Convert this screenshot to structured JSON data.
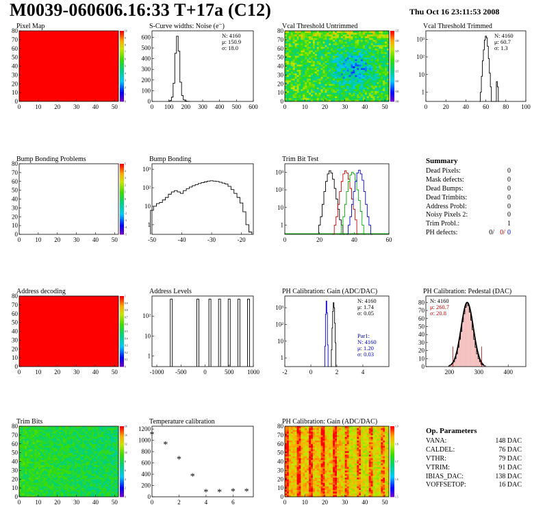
{
  "header": {
    "title": "M0039-060606.16:33 T+17a (C12)",
    "date": "Thu Oct 16 23:11:53 2008"
  },
  "summary": {
    "heading": "Summary",
    "rows": [
      {
        "label": "Dead Pixels:",
        "value": "0"
      },
      {
        "label": "Mask defects:",
        "value": "0"
      },
      {
        "label": "Dead Bumps:",
        "value": "0"
      },
      {
        "label": "Dead Trimbits:",
        "value": "0"
      },
      {
        "label": "Address Probl:",
        "value": "0"
      },
      {
        "label": "Noisy Pixels 2:",
        "value": "0"
      },
      {
        "label": "Trim Probl.:",
        "value": "1"
      }
    ],
    "ph_label": "PH defects:",
    "ph_values": [
      "0/",
      "0/",
      "0"
    ],
    "ph_colors": [
      "#000000",
      "#cc0000",
      "#0000cc"
    ]
  },
  "op_params": {
    "heading": "Op. Parameters",
    "rows": [
      {
        "label": "VANA:",
        "value": "148 DAC"
      },
      {
        "label": "CALDEL:",
        "value": "76 DAC"
      },
      {
        "label": "VTHR:",
        "value": "79 DAC"
      },
      {
        "label": "VTRIM:",
        "value": "91 DAC"
      },
      {
        "label": "IBIAS_DAC:",
        "value": "138 DAC"
      },
      {
        "label": "VOFFSETOP:",
        "value": "16 DAC"
      }
    ]
  },
  "chart_data": [
    {
      "id": "pixel-map",
      "type": "heatmap",
      "title": "Pixel Map",
      "fill": "uniform-red",
      "xticks": [
        "0",
        "10",
        "20",
        "30",
        "40",
        "50"
      ],
      "yticks": [
        "0",
        "10",
        "20",
        "30",
        "40",
        "50",
        "60",
        "70",
        "80"
      ],
      "zticks": [
        "0",
        "1",
        "2",
        "3",
        "4",
        "5",
        "6",
        "7",
        "8",
        "9",
        "10"
      ]
    },
    {
      "id": "scurve-noise",
      "type": "bar",
      "title": "S-Curve widths: Noise (e⁻)",
      "xticks": [
        "0",
        "100",
        "200",
        "300",
        "400",
        "500",
        "600"
      ],
      "yticks": [
        "0",
        "100",
        "200",
        "300",
        "400",
        "500",
        "600"
      ],
      "xlim": [
        0,
        600
      ],
      "ylim": [
        0,
        660
      ],
      "stats": [
        {
          "text": "N: 4160"
        },
        {
          "text": "μ: 150.9"
        },
        {
          "text": "σ: 18.0"
        }
      ],
      "series": [
        {
          "color": "#000000",
          "x": [
            100,
            110,
            120,
            130,
            140,
            150,
            160,
            170,
            180,
            190,
            200,
            210,
            220
          ],
          "values": [
            0,
            8,
            40,
            170,
            450,
            610,
            470,
            180,
            55,
            15,
            4,
            1,
            0
          ]
        }
      ]
    },
    {
      "id": "vcal-untrimmed",
      "type": "heatmap",
      "title": "Vcal Threshold Untrimmed",
      "fill": "mixed-blue-green",
      "xticks": [
        "0",
        "10",
        "20",
        "30",
        "40",
        "50"
      ],
      "yticks": [
        "0",
        "10",
        "20",
        "30",
        "40",
        "50",
        "60",
        "70",
        "80"
      ],
      "zticks": [
        "100",
        "105",
        "110",
        "115",
        "120",
        "125",
        "130",
        "135"
      ]
    },
    {
      "id": "vcal-trimmed",
      "type": "bar",
      "title": "Vcal Threshold Trimmed",
      "log": true,
      "xticks": [
        "0",
        "20",
        "40",
        "60",
        "80",
        "100"
      ],
      "yticks": [
        "1",
        "10",
        "10²",
        "10³"
      ],
      "xlim": [
        0,
        100
      ],
      "ylim": [
        0.3,
        3000
      ],
      "stats": [
        {
          "text": "N: 4160"
        },
        {
          "text": "μ: 60.7"
        },
        {
          "text": "σ:  1.3"
        }
      ],
      "series": [
        {
          "color": "#000000",
          "x": [
            54,
            55,
            56,
            57,
            58,
            59,
            60,
            61,
            62,
            63,
            64,
            65,
            66,
            67,
            68,
            69,
            70,
            71,
            72,
            73
          ],
          "values": [
            0,
            1,
            8,
            60,
            250,
            900,
            1500,
            1200,
            400,
            80,
            12,
            2,
            0,
            0,
            0,
            0,
            0,
            4,
            2,
            0
          ]
        }
      ]
    },
    {
      "id": "bump-problems",
      "type": "heatmap",
      "title": "Bump Bonding Problems",
      "fill": "white",
      "xticks": [
        "0",
        "10",
        "20",
        "30",
        "40",
        "50"
      ],
      "yticks": [
        "0",
        "10",
        "20",
        "30",
        "40",
        "50",
        "60",
        "70",
        "80"
      ],
      "zticks": [
        "-5",
        "-4",
        "-3",
        "-2",
        "-1",
        "0",
        "1",
        "2",
        "3",
        "4",
        "5"
      ]
    },
    {
      "id": "bump-bonding",
      "type": "bar",
      "title": "Bump Bonding",
      "log": true,
      "xticks": [
        "-50",
        "-40",
        "-30",
        "-20"
      ],
      "yticks": [
        "1",
        "10",
        "10²",
        "10³"
      ],
      "xlim": [
        -50,
        -16
      ],
      "ylim": [
        0.3,
        2000
      ],
      "series": [
        {
          "color": "#000000",
          "x": [
            -50,
            -49,
            -48,
            -47,
            -46,
            -45,
            -44,
            -43,
            -42,
            -41,
            -40,
            -39,
            -38,
            -37,
            -36,
            -35,
            -34,
            -33,
            -32,
            -31,
            -30,
            -29,
            -28,
            -27,
            -26,
            -25,
            -24,
            -23,
            -22,
            -21,
            -20,
            -19,
            -18,
            -17
          ],
          "values": [
            6,
            10,
            14,
            16,
            22,
            30,
            45,
            60,
            70,
            60,
            50,
            70,
            90,
            110,
            130,
            150,
            170,
            190,
            210,
            230,
            240,
            230,
            220,
            200,
            180,
            160,
            120,
            80,
            50,
            30,
            15,
            5,
            1,
            0.4
          ]
        }
      ]
    },
    {
      "id": "trim-bit-test",
      "type": "bar",
      "title": "Trim Bit Test",
      "log": true,
      "xticks": [
        "0",
        "20",
        "40",
        "60"
      ],
      "yticks": [
        "1",
        "10",
        "10²",
        "10³"
      ],
      "xlim": [
        0,
        60
      ],
      "ylim": [
        0.3,
        3000
      ],
      "series": [
        {
          "color": "#000000",
          "x": [
            20,
            21,
            22,
            23,
            24,
            25,
            26,
            27,
            28,
            29,
            30,
            31,
            32,
            33,
            34
          ],
          "values": [
            1,
            3,
            15,
            80,
            300,
            800,
            1200,
            900,
            400,
            120,
            30,
            8,
            2,
            1,
            0.3
          ]
        },
        {
          "color": "#cc0000",
          "x": [
            28,
            29,
            30,
            31,
            32,
            33,
            34,
            35,
            36,
            37,
            38,
            39,
            40,
            41,
            42
          ],
          "values": [
            0.3,
            1,
            3,
            15,
            80,
            300,
            800,
            1200,
            900,
            400,
            120,
            30,
            8,
            2,
            0.3
          ]
        },
        {
          "color": "#00aa00",
          "x": [
            32,
            33,
            34,
            35,
            36,
            37,
            38,
            39,
            40,
            41,
            42,
            43,
            44,
            45,
            46
          ],
          "values": [
            0.3,
            1,
            3,
            15,
            80,
            300,
            700,
            1000,
            800,
            350,
            100,
            25,
            6,
            1,
            0.3
          ]
        },
        {
          "color": "#0000cc",
          "x": [
            36,
            37,
            38,
            39,
            40,
            41,
            42,
            43,
            44,
            45,
            46,
            47,
            48,
            49,
            50
          ],
          "values": [
            0.3,
            1,
            3,
            15,
            80,
            300,
            900,
            1300,
            800,
            350,
            80,
            15,
            3,
            1,
            0.3
          ]
        }
      ]
    },
    {
      "id": "address-decoding",
      "type": "heatmap",
      "title": "Address decoding",
      "fill": "uniform-red",
      "xticks": [
        "0",
        "10",
        "20",
        "30",
        "40",
        "50"
      ],
      "yticks": [
        "0",
        "10",
        "20",
        "30",
        "40",
        "50",
        "60",
        "70",
        "80"
      ],
      "zticks": [
        "0",
        "0.1",
        "0.2",
        "0.3",
        "0.4",
        "0.5",
        "0.6",
        "0.7",
        "0.8",
        "0.9",
        "1"
      ]
    },
    {
      "id": "address-levels",
      "type": "bar",
      "title": "Address Levels",
      "log": true,
      "xticks": [
        "-1000",
        "-500",
        "0",
        "500",
        "1000"
      ],
      "yticks": [
        "1",
        "10",
        "10²"
      ],
      "xlim": [
        -1100,
        1000
      ],
      "ylim": [
        0.3,
        1000
      ],
      "series": [
        {
          "color": "#000000",
          "peaks": [
            -700,
            -150,
            100,
            300,
            500,
            700,
            900
          ],
          "values": [
            700,
            700,
            700,
            700,
            700,
            700,
            700
          ]
        }
      ]
    },
    {
      "id": "ph-gain",
      "type": "bar",
      "title": "PH Calibration: Gain (ADC/DAC)",
      "log": true,
      "xticks": [
        "-2",
        "0",
        "2",
        "4"
      ],
      "yticks": [
        "1",
        "10",
        "10²",
        "10³"
      ],
      "xlim": [
        -2,
        6
      ],
      "ylim": [
        0.3,
        5000
      ],
      "stats": [
        {
          "text": "N: 4160"
        },
        {
          "text": "μ: 1.74"
        },
        {
          "text": "σ: 0.05"
        }
      ],
      "stats2": [
        {
          "text": "Par1:"
        },
        {
          "text": "N: 4160"
        },
        {
          "text": "μ: 1.20"
        },
        {
          "text": "σ: 0.03"
        }
      ],
      "series": [
        {
          "color": "#000000",
          "x": [
            1.55,
            1.6,
            1.65,
            1.7,
            1.75,
            1.8,
            1.85,
            1.9,
            1.95
          ],
          "values": [
            0.3,
            3,
            60,
            600,
            2000,
            1000,
            120,
            8,
            0.3
          ]
        },
        {
          "color": "#0000cc",
          "x": [
            1.05,
            1.1,
            1.15,
            1.2,
            1.25,
            1.3,
            1.35
          ],
          "values": [
            0.3,
            5,
            400,
            2500,
            500,
            6,
            0.3
          ]
        }
      ]
    },
    {
      "id": "ph-pedestal",
      "type": "bar",
      "title": "PH Calibration: Pedestal (DAC)",
      "xticks": [
        "200",
        "300",
        "400"
      ],
      "yticks": [
        "0",
        "10",
        "20",
        "30",
        "40",
        "50",
        "60",
        "70",
        "80"
      ],
      "xlim": [
        120,
        460
      ],
      "ylim": [
        0,
        88
      ],
      "stats": [
        {
          "text": "N: 4160",
          "color": "#000000"
        },
        {
          "text": "μ: 260.7",
          "color": "#cc0000"
        },
        {
          "text": "σ: 20.8",
          "color": "#cc0000"
        }
      ],
      "series": [
        {
          "color": "#000000",
          "x": [
            200,
            205,
            210,
            215,
            220,
            225,
            230,
            235,
            240,
            245,
            250,
            255,
            260,
            265,
            270,
            275,
            280,
            285,
            290,
            295,
            300,
            305,
            310,
            315,
            320
          ],
          "values": [
            1,
            2,
            4,
            6,
            10,
            16,
            24,
            34,
            44,
            56,
            66,
            74,
            80,
            76,
            68,
            58,
            46,
            34,
            24,
            16,
            10,
            6,
            3,
            2,
            1
          ]
        }
      ]
    },
    {
      "id": "trim-bits",
      "type": "heatmap",
      "title": "Trim Bits",
      "fill": "mixed-green",
      "xticks": [
        "0",
        "10",
        "20",
        "30",
        "40",
        "50"
      ],
      "yticks": [
        "0",
        "10",
        "20",
        "30",
        "40",
        "50",
        "60",
        "70",
        "80"
      ],
      "zticks": [
        "0",
        "2",
        "4",
        "6",
        "8",
        "10",
        "12",
        "14",
        "16"
      ]
    },
    {
      "id": "temperature-calibration",
      "type": "scatter",
      "title": "Temperature calibration",
      "xticks": [
        "0",
        "2",
        "4",
        "6"
      ],
      "yticks": [
        "0",
        "200",
        "400",
        "600",
        "800",
        "1000",
        "1200"
      ],
      "xlim": [
        0,
        7.5
      ],
      "ylim": [
        0,
        1250
      ],
      "series": [
        {
          "color": "#000000",
          "x": [
            0,
            1,
            2,
            3,
            4,
            5,
            6,
            7
          ],
          "values": [
            1100,
            920,
            660,
            360,
            80,
            80,
            90,
            90
          ]
        }
      ]
    },
    {
      "id": "ph-gain-map",
      "type": "heatmap",
      "title": "PH Calibration: Gain (ADC/DAC)",
      "fill": "mixed-red-yellow",
      "xticks": [
        "0",
        "10",
        "20",
        "30",
        "40",
        "50"
      ],
      "yticks": [
        "0",
        "10",
        "20",
        "30",
        "40",
        "50",
        "60",
        "70",
        "80"
      ],
      "zticks": [
        "1.5",
        "1.6",
        "1.7",
        "1.8",
        "1.9"
      ]
    }
  ]
}
